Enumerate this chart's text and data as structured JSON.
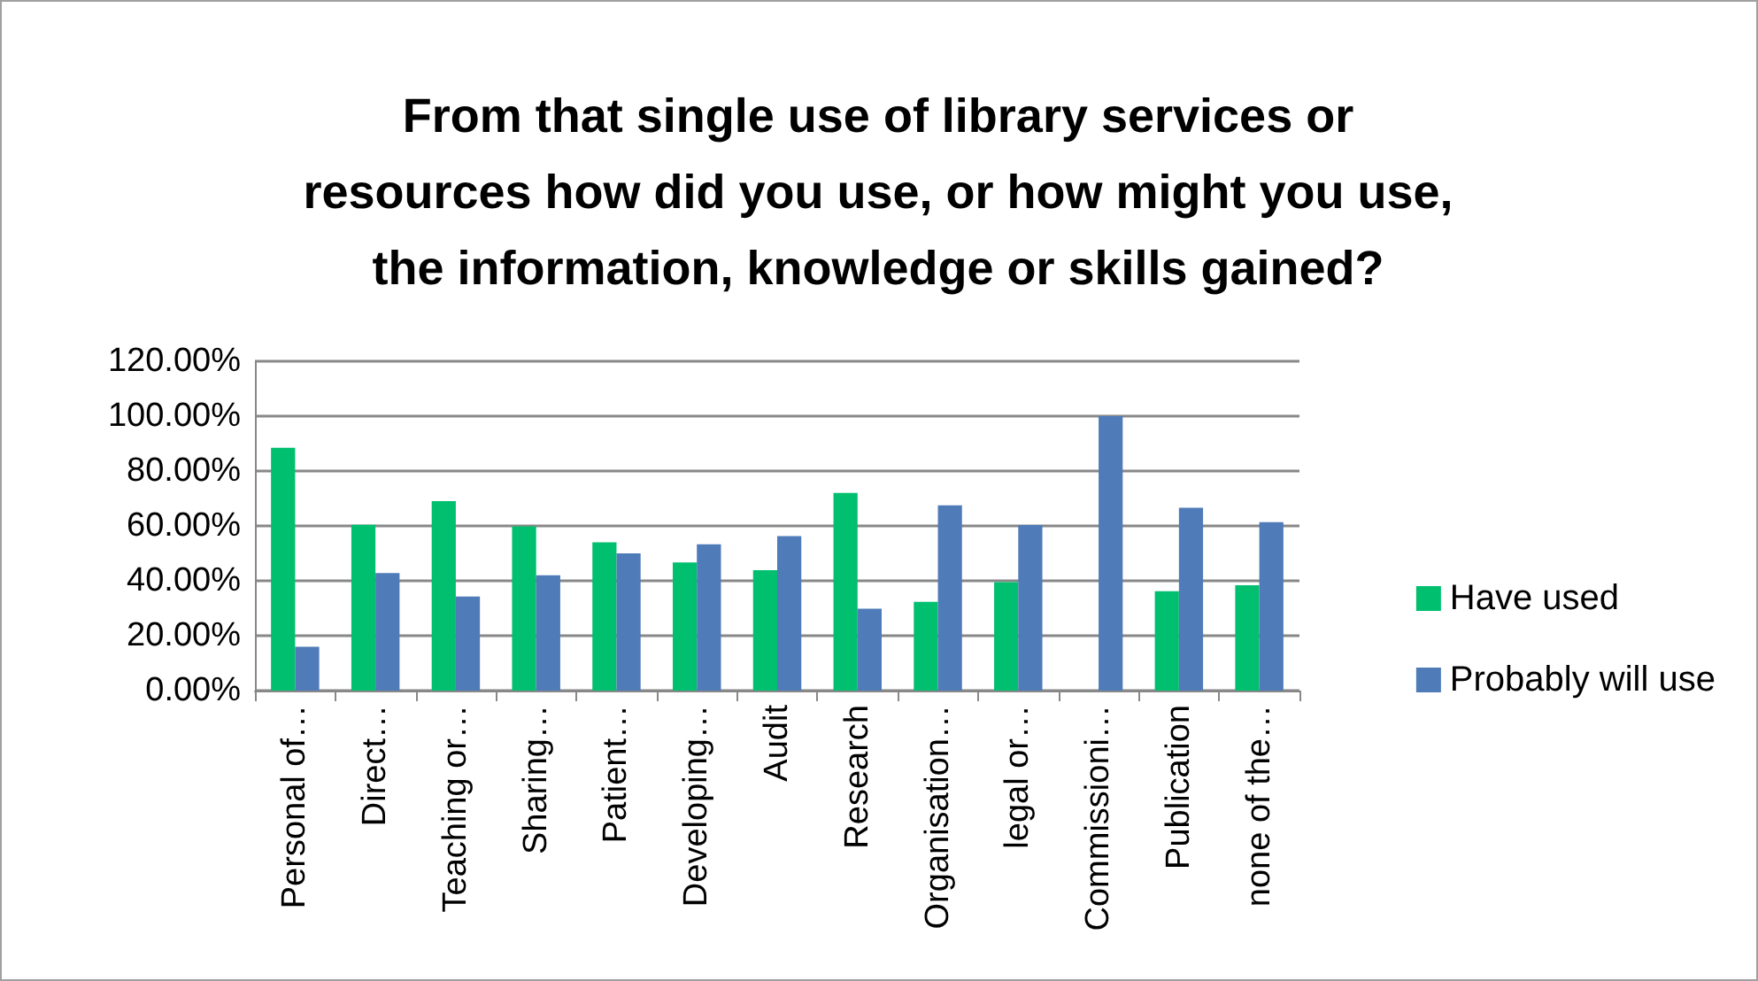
{
  "chart_data": {
    "type": "bar",
    "title": "From that single use of library services or\nresources how did you use, or how might you use,\nthe information, knowledge or skills gained?",
    "categories": [
      "Personal of…",
      "Direct…",
      "Teaching or…",
      "Sharing…",
      "Patient…",
      "Developing…",
      "Audit",
      "Research",
      "Organisation…",
      "legal or…",
      "Commissioni…",
      "Publication",
      "none of the…"
    ],
    "series": [
      {
        "name": "Have used",
        "color": "#00bf6f",
        "values": [
          88.5,
          60.4,
          69,
          59.8,
          54,
          46.7,
          43.9,
          72,
          32.3,
          39.5,
          null,
          36.2,
          38.4
        ]
      },
      {
        "name": "Probably will use",
        "color": "#4f7bb8",
        "values": [
          16,
          42.8,
          34.3,
          42,
          50,
          53.3,
          56.3,
          29.8,
          67.5,
          60.3,
          100,
          66.6,
          61.4
        ]
      }
    ],
    "ylim": [
      0,
      120
    ],
    "yticks": [
      {
        "value": 0,
        "label": "0.00%"
      },
      {
        "value": 20,
        "label": "20.00%"
      },
      {
        "value": 40,
        "label": "40.00%"
      },
      {
        "value": 60,
        "label": "60.00%"
      },
      {
        "value": 80,
        "label": "80.00%"
      },
      {
        "value": 100,
        "label": "100.00%"
      },
      {
        "value": 120,
        "label": "120.00%"
      }
    ],
    "grid": "y",
    "legend": "right"
  }
}
